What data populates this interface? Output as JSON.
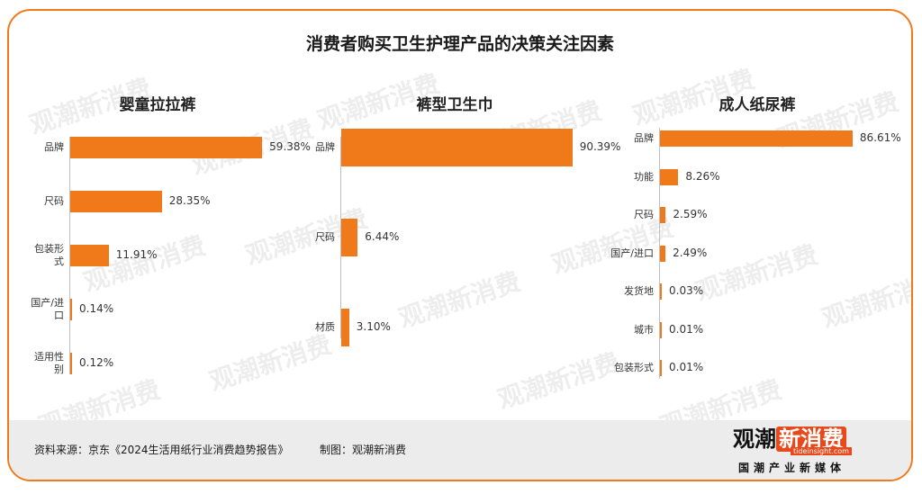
{
  "title": "消费者购买卫生护理产品的决策关注因素",
  "chart_data": [
    {
      "type": "bar",
      "orientation": "horizontal",
      "title": "婴童拉拉裤",
      "categories": [
        "品牌",
        "尺码",
        "包装形式",
        "国产/进口",
        "适用性别"
      ],
      "category_lines": [
        [
          "品牌"
        ],
        [
          "尺码"
        ],
        [
          "包装形",
          "式"
        ],
        [
          "国产/进",
          "口"
        ],
        [
          "适用性",
          "别"
        ]
      ],
      "values": [
        59.38,
        28.35,
        11.91,
        0.14,
        0.12
      ],
      "value_labels": [
        "59.38%",
        "28.35%",
        "11.91%",
        "0.14%",
        "0.12%"
      ],
      "xlim": [
        0,
        100
      ]
    },
    {
      "type": "bar",
      "orientation": "horizontal",
      "title": "裤型卫生巾",
      "categories": [
        "品牌",
        "尺码",
        "材质"
      ],
      "category_lines": [
        [
          "品牌"
        ],
        [
          "尺码"
        ],
        [
          "材质"
        ]
      ],
      "values": [
        90.39,
        6.44,
        3.1
      ],
      "value_labels": [
        "90.39%",
        "6.44%",
        "3.10%"
      ],
      "xlim": [
        0,
        100
      ]
    },
    {
      "type": "bar",
      "orientation": "horizontal",
      "title": "成人纸尿裤",
      "categories": [
        "品牌",
        "功能",
        "尺码",
        "国产/进口",
        "发货地",
        "城市",
        "包装形式"
      ],
      "category_lines": [
        [
          "品牌"
        ],
        [
          "功能"
        ],
        [
          "尺码"
        ],
        [
          "国产/进口"
        ],
        [
          "发货地"
        ],
        [
          "城市"
        ],
        [
          "包装形式"
        ]
      ],
      "values": [
        86.61,
        8.26,
        2.59,
        2.49,
        0.03,
        0.01,
        0.01
      ],
      "value_labels": [
        "86.61%",
        "8.26%",
        "2.59%",
        "2.49%",
        "0.03%",
        "0.01%",
        "0.01%"
      ],
      "xlim": [
        0,
        100
      ]
    }
  ],
  "footer": {
    "source": "资料来源：京东《2024生活用纸行业消费趋势报告》",
    "maker": "制图：观潮新消费"
  },
  "logo": {
    "part_a": "观潮",
    "part_b": "新消费",
    "url": "tideinsight.com",
    "tagline": "国潮产业新媒体"
  },
  "colors": {
    "accent": "#f07a1a",
    "border": "#f07a1a",
    "footer_bg": "#ececec"
  }
}
